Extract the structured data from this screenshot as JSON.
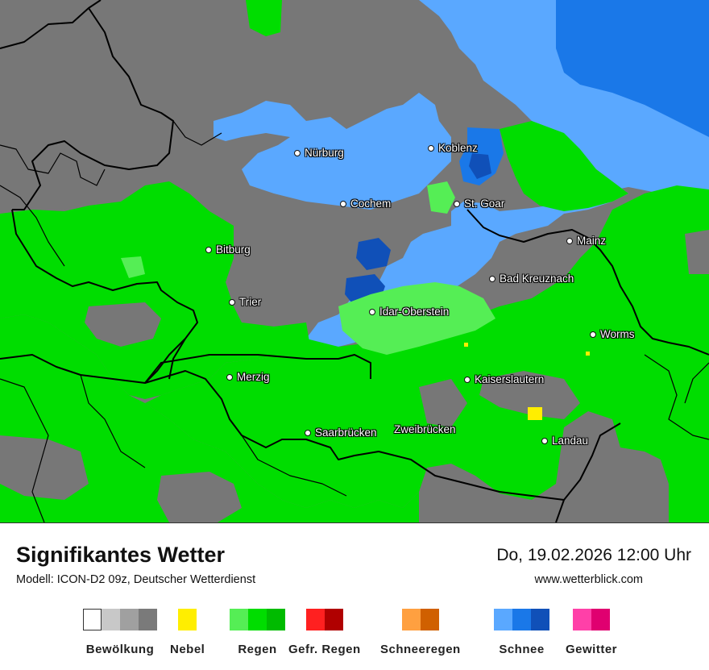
{
  "map": {
    "colors": {
      "cloud": "#777777",
      "rain_light": "#55ee55",
      "rain": "#00dd00",
      "rain_heavy": "#00bb00",
      "snow_light": "#5aa8ff",
      "snow": "#1a78e8",
      "snow_heavy": "#1050b8",
      "fog": "#ffee00",
      "border": "#000000"
    },
    "cities": [
      {
        "name": "Nürburg"
      },
      {
        "name": "Koblenz"
      },
      {
        "name": "Cochem"
      },
      {
        "name": "St. Goar"
      },
      {
        "name": "Bitburg"
      },
      {
        "name": "Mainz"
      },
      {
        "name": "Bad Kreuznach"
      },
      {
        "name": "Trier"
      },
      {
        "name": "Idar-Oberstein"
      },
      {
        "name": "Worms"
      },
      {
        "name": "Merzig"
      },
      {
        "name": "Kaiserslautern"
      },
      {
        "name": "Saarbrücken"
      },
      {
        "name": "Zweibrücken"
      },
      {
        "name": "Landau"
      }
    ]
  },
  "footer": {
    "title": "Signifikantes Wetter",
    "subtitle": "Modell: ICON-D2 09z, Deutscher Wetterdienst",
    "datetime": "Do, 19.02.2026 12:00 Uhr",
    "website": "www.wetterblick.com"
  },
  "legend": [
    {
      "label": "Bewölkung",
      "colors": [
        "#ffffff",
        "#c8c8c8",
        "#a0a0a0",
        "#7a7a7a"
      ]
    },
    {
      "label": "Nebel",
      "colors": [
        "#ffee00"
      ]
    },
    {
      "label": "Regen",
      "colors": [
        "#55ee55",
        "#00dd00",
        "#00bb00"
      ]
    },
    {
      "label": "Gefr. Regen",
      "colors": [
        "#ff2020",
        "#b00000"
      ]
    },
    {
      "label": "Schneeregen",
      "colors": [
        "#ffa040",
        "#d06000"
      ]
    },
    {
      "label": "Schnee",
      "colors": [
        "#5aa8ff",
        "#1a78e8",
        "#1050b8"
      ]
    },
    {
      "label": "Gewitter",
      "colors": [
        "#ff40a8",
        "#e00070"
      ]
    }
  ]
}
